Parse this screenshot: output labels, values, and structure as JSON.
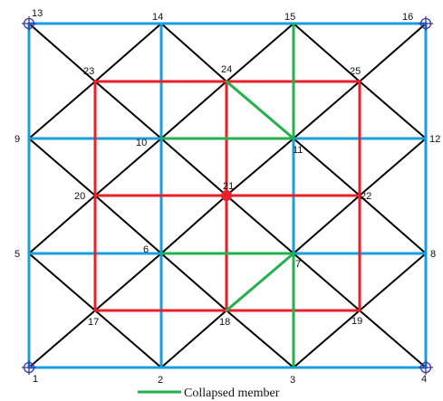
{
  "colors": {
    "diagonal": "#000000",
    "grid": "#1a9ee0",
    "inner": "#e8202a",
    "collapsed": "#22b14c",
    "hub": "#e8202a",
    "support": "#3a3aa8",
    "background": "#ffffff"
  },
  "nodes": [
    {
      "id": "1",
      "label": "1"
    },
    {
      "id": "2",
      "label": "2"
    },
    {
      "id": "3",
      "label": "3"
    },
    {
      "id": "4",
      "label": "4"
    },
    {
      "id": "5",
      "label": "5"
    },
    {
      "id": "6",
      "label": "6"
    },
    {
      "id": "7",
      "label": "7"
    },
    {
      "id": "8",
      "label": "8"
    },
    {
      "id": "9",
      "label": "9"
    },
    {
      "id": "10",
      "label": "10"
    },
    {
      "id": "11",
      "label": "11"
    },
    {
      "id": "12",
      "label": "12"
    },
    {
      "id": "13",
      "label": "13"
    },
    {
      "id": "14",
      "label": "14"
    },
    {
      "id": "15",
      "label": "15"
    },
    {
      "id": "16",
      "label": "16"
    },
    {
      "id": "17",
      "label": "17"
    },
    {
      "id": "18",
      "label": "18"
    },
    {
      "id": "19",
      "label": "19"
    },
    {
      "id": "20",
      "label": "20"
    },
    {
      "id": "21",
      "label": "21"
    },
    {
      "id": "22",
      "label": "22"
    },
    {
      "id": "23",
      "label": "23"
    },
    {
      "id": "24",
      "label": "24"
    },
    {
      "id": "25",
      "label": "25"
    }
  ],
  "members": {
    "grid": [
      [
        "13",
        "14"
      ],
      [
        "14",
        "15"
      ],
      [
        "15",
        "16"
      ],
      [
        "9",
        "10"
      ],
      [
        "10",
        "11"
      ],
      [
        "11",
        "12"
      ],
      [
        "5",
        "6"
      ],
      [
        "6",
        "7"
      ],
      [
        "7",
        "8"
      ],
      [
        "1",
        "2"
      ],
      [
        "2",
        "3"
      ],
      [
        "3",
        "4"
      ],
      [
        "13",
        "9"
      ],
      [
        "9",
        "5"
      ],
      [
        "5",
        "1"
      ],
      [
        "14",
        "10"
      ],
      [
        "10",
        "6"
      ],
      [
        "6",
        "2"
      ],
      [
        "15",
        "11"
      ],
      [
        "11",
        "7"
      ],
      [
        "7",
        "3"
      ],
      [
        "16",
        "12"
      ],
      [
        "12",
        "8"
      ],
      [
        "8",
        "4"
      ]
    ],
    "inner": [
      [
        "23",
        "24"
      ],
      [
        "24",
        "25"
      ],
      [
        "20",
        "21"
      ],
      [
        "21",
        "22"
      ],
      [
        "17",
        "18"
      ],
      [
        "18",
        "19"
      ],
      [
        "23",
        "20"
      ],
      [
        "20",
        "17"
      ],
      [
        "24",
        "21"
      ],
      [
        "21",
        "18"
      ],
      [
        "25",
        "22"
      ],
      [
        "22",
        "19"
      ]
    ],
    "diagonal": [
      [
        "13",
        "23"
      ],
      [
        "23",
        "10"
      ],
      [
        "14",
        "23"
      ],
      [
        "23",
        "9"
      ],
      [
        "14",
        "24"
      ],
      [
        "24",
        "11"
      ],
      [
        "15",
        "24"
      ],
      [
        "24",
        "10"
      ],
      [
        "15",
        "25"
      ],
      [
        "25",
        "12"
      ],
      [
        "16",
        "25"
      ],
      [
        "25",
        "11"
      ],
      [
        "9",
        "20"
      ],
      [
        "20",
        "6"
      ],
      [
        "10",
        "20"
      ],
      [
        "20",
        "5"
      ],
      [
        "10",
        "21"
      ],
      [
        "21",
        "7"
      ],
      [
        "11",
        "21"
      ],
      [
        "21",
        "6"
      ],
      [
        "11",
        "22"
      ],
      [
        "22",
        "8"
      ],
      [
        "12",
        "22"
      ],
      [
        "22",
        "7"
      ],
      [
        "5",
        "17"
      ],
      [
        "17",
        "2"
      ],
      [
        "6",
        "17"
      ],
      [
        "17",
        "1"
      ],
      [
        "6",
        "18"
      ],
      [
        "18",
        "3"
      ],
      [
        "7",
        "18"
      ],
      [
        "18",
        "2"
      ],
      [
        "7",
        "19"
      ],
      [
        "19",
        "4"
      ],
      [
        "8",
        "19"
      ],
      [
        "19",
        "3"
      ]
    ],
    "collapsed": [
      [
        "15",
        "11"
      ],
      [
        "24",
        "11"
      ],
      [
        "10",
        "11"
      ],
      [
        "6",
        "7"
      ],
      [
        "7",
        "18"
      ],
      [
        "7",
        "3"
      ]
    ]
  },
  "hub_node": "21",
  "supports": [
    "13",
    "16",
    "1",
    "4"
  ],
  "legend": {
    "label": "Collapsed member"
  }
}
